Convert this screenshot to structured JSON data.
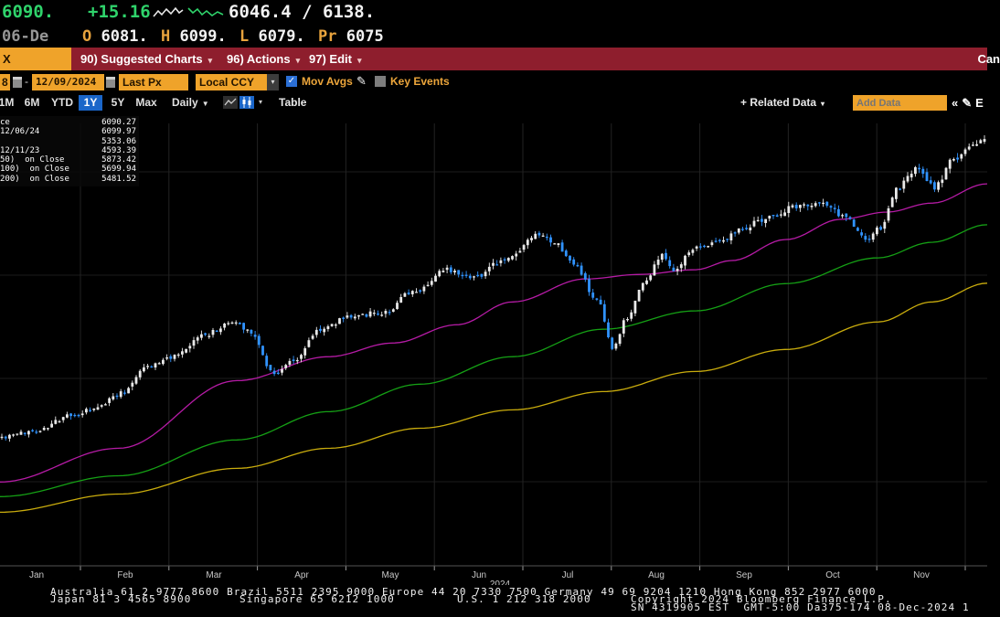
{
  "icons": {
    "caret_down": "▾",
    "caret_solid": "▼",
    "chevrons_left": "«",
    "pencil": "✎",
    "check": "✓",
    "dash": "-"
  },
  "quote_row": {
    "last": "6090.",
    "change": "+15.16",
    "bid_ask": "6046.4 / 6138."
  },
  "ohlc_row": {
    "date": "06-De",
    "open_label": "O",
    "open": "6081.",
    "high_label": "H",
    "high": "6099.",
    "low_label": "L",
    "low": "6079.",
    "prev_label": "Pr",
    "prev": "6075"
  },
  "menu_bar": {
    "ticker_fragment": "X",
    "items": [
      {
        "label": "90) Suggested Charts"
      },
      {
        "label": "96) Actions"
      },
      {
        "label": "97) Edit"
      }
    ],
    "right_fragment": "Can"
  },
  "controls": {
    "start_date_fragment": "8",
    "range_dash": "-",
    "end_date": "12/09/2024",
    "price_mode": "Last Px",
    "currency": "Local CCY",
    "mov_avgs_label": "Mov Avgs",
    "key_events_label": "Key Events"
  },
  "toolbar": {
    "ranges": [
      "1M",
      "6M",
      "YTD",
      "1Y",
      "5Y",
      "Max"
    ],
    "active_range": "1Y",
    "frequency": "Daily",
    "table_label": "Table",
    "related_data_label": "+ Related Data",
    "add_data_placeholder": "Add Data",
    "edit_fragment": "E"
  },
  "legend": {
    "rows": [
      {
        "label": "ce",
        "value": "6090.27"
      },
      {
        "label": "12/06/24",
        "value": "6099.97"
      },
      {
        "label": "",
        "value": "5353.06"
      },
      {
        "label": "12/11/23",
        "value": "4593.39"
      },
      {
        "label": "50)  on Close",
        "value": "5873.42"
      },
      {
        "label": "100)  on Close",
        "value": "5699.94"
      },
      {
        "label": "200)  on Close",
        "value": "5481.52"
      }
    ]
  },
  "chart_data": {
    "type": "candlestick",
    "last_price": 6090.27,
    "high": {
      "date": "12/06/24",
      "value": 6099.97
    },
    "average": 5353.06,
    "low": {
      "date": "12/11/23",
      "value": 4593.39
    },
    "sma50_close": 5873.42,
    "sma100_close": 5699.94,
    "sma200_close": 5481.52,
    "x_months": [
      "Jan",
      "Feb",
      "Mar",
      "Apr",
      "May",
      "Jun",
      "Jul",
      "Aug",
      "Sep",
      "Oct",
      "Nov"
    ],
    "year": "2024",
    "ylim": [
      3900,
      6170
    ],
    "days": 257,
    "up_color": "#e9e9e9",
    "down_color": "#3093ff",
    "close_anchors": [
      [
        0.0,
        4560
      ],
      [
        0.037,
        4597
      ],
      [
        0.069,
        4668
      ],
      [
        0.093,
        4700
      ],
      [
        0.12,
        4785
      ],
      [
        0.148,
        4926
      ],
      [
        0.176,
        4973
      ],
      [
        0.208,
        5090
      ],
      [
        0.236,
        5151
      ],
      [
        0.25,
        5114
      ],
      [
        0.278,
        4888
      ],
      [
        0.296,
        4949
      ],
      [
        0.324,
        5114
      ],
      [
        0.356,
        5184
      ],
      [
        0.389,
        5198
      ],
      [
        0.417,
        5301
      ],
      [
        0.454,
        5419
      ],
      [
        0.481,
        5386
      ],
      [
        0.514,
        5475
      ],
      [
        0.546,
        5592
      ],
      [
        0.565,
        5545
      ],
      [
        0.583,
        5442
      ],
      [
        0.606,
        5254
      ],
      [
        0.622,
        5010
      ],
      [
        0.635,
        5160
      ],
      [
        0.653,
        5348
      ],
      [
        0.671,
        5489
      ],
      [
        0.685,
        5419
      ],
      [
        0.704,
        5527
      ],
      [
        0.731,
        5574
      ],
      [
        0.755,
        5639
      ],
      [
        0.782,
        5691
      ],
      [
        0.81,
        5747
      ],
      [
        0.833,
        5761
      ],
      [
        0.856,
        5700
      ],
      [
        0.88,
        5574
      ],
      [
        0.894,
        5630
      ],
      [
        0.912,
        5842
      ],
      [
        0.931,
        5935
      ],
      [
        0.949,
        5842
      ],
      [
        0.968,
        5982
      ],
      [
        0.986,
        6053
      ],
      [
        1.0,
        6090
      ]
    ],
    "ma_series": [
      {
        "name": "SMAVG (50) on Close",
        "color": "#b51ba5",
        "anchors": [
          [
            0,
            4330
          ],
          [
            0.12,
            4503
          ],
          [
            0.24,
            4850
          ],
          [
            0.333,
            4973
          ],
          [
            0.398,
            5043
          ],
          [
            0.463,
            5137
          ],
          [
            0.519,
            5254
          ],
          [
            0.593,
            5372
          ],
          [
            0.648,
            5395
          ],
          [
            0.704,
            5419
          ],
          [
            0.741,
            5466
          ],
          [
            0.796,
            5574
          ],
          [
            0.852,
            5678
          ],
          [
            0.898,
            5715
          ],
          [
            0.944,
            5761
          ],
          [
            1,
            5860
          ]
        ]
      },
      {
        "name": "SMAVG (100) on Close",
        "color": "#15a015",
        "anchors": [
          [
            0,
            4255
          ],
          [
            0.12,
            4362
          ],
          [
            0.24,
            4546
          ],
          [
            0.333,
            4691
          ],
          [
            0.426,
            4832
          ],
          [
            0.519,
            4973
          ],
          [
            0.611,
            5114
          ],
          [
            0.704,
            5208
          ],
          [
            0.796,
            5348
          ],
          [
            0.889,
            5480
          ],
          [
            0.944,
            5560
          ],
          [
            1,
            5650
          ]
        ]
      },
      {
        "name": "SMAVG (200) on Close",
        "color": "#c9ac0d",
        "anchors": [
          [
            0,
            4175
          ],
          [
            0.12,
            4268
          ],
          [
            0.24,
            4400
          ],
          [
            0.333,
            4503
          ],
          [
            0.426,
            4606
          ],
          [
            0.519,
            4700
          ],
          [
            0.611,
            4794
          ],
          [
            0.704,
            4897
          ],
          [
            0.796,
            5010
          ],
          [
            0.889,
            5151
          ],
          [
            0.944,
            5254
          ],
          [
            1,
            5350
          ]
        ]
      }
    ]
  },
  "footer": {
    "line1": "Australia 61 2 9777 8600 Brazil 5511 2395 9000 Europe 44 20 7330 7500 Germany 49 69 9204 1210 Hong Kong 852 2977 6000",
    "line2_japan": "Japan 81 3 4565 8900",
    "line2_singapore": "Singapore 65 6212 1000",
    "line2_us": "U.S. 1 212 318 2000",
    "line2_copyright": "Copyright 2024 Bloomberg Finance L.P.",
    "line3": "SN 4319905 EST  GMT-5:00 Da375-174 08-Dec-2024 1"
  }
}
